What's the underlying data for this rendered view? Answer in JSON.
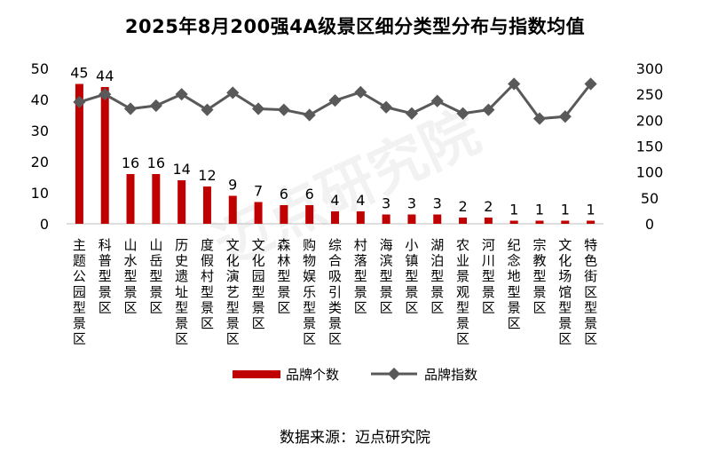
{
  "chart_data": {
    "type": "bar",
    "title": "2025年8月200强4A级景区细分类型分布与指数均值",
    "categories": [
      "主题公园型景区",
      "科普型景区",
      "山水型景区",
      "山岳型景区",
      "历史遗址型景区",
      "度假村型景区",
      "文化演艺型景区",
      "文化园型景区",
      "森林型景区",
      "购物娱乐型景区",
      "综合吸引类景区",
      "村落型景区",
      "海滨型景区",
      "小镇型景区",
      "湖泊型景区",
      "农业景观型景区",
      "河川型景区",
      "纪念地型景区",
      "宗教型景区",
      "文化场馆型景区",
      "特色街区型景区"
    ],
    "series": [
      {
        "name": "品牌个数",
        "type": "bar",
        "axis": "left",
        "color": "#c00000",
        "values": [
          45,
          44,
          16,
          16,
          14,
          12,
          9,
          7,
          6,
          6,
          4,
          4,
          3,
          3,
          3,
          2,
          2,
          1,
          1,
          1,
          1
        ]
      },
      {
        "name": "品牌指数",
        "type": "line",
        "axis": "right",
        "color": "#595959",
        "values": [
          235,
          250,
          222,
          228,
          250,
          220,
          253,
          222,
          220,
          210,
          238,
          254,
          225,
          213,
          237,
          213,
          220,
          270,
          203,
          207,
          270
        ]
      }
    ],
    "ylim_left": [
      0,
      50
    ],
    "yticks_left": [
      0,
      10,
      20,
      30,
      40,
      50
    ],
    "ylim_right": [
      0,
      300
    ],
    "yticks_right": [
      0,
      50,
      100,
      150,
      200,
      250,
      300
    ],
    "legend_position": "bottom",
    "grid": false
  },
  "source": "数据来源：迈点研究院",
  "watermark": "迈点研究院"
}
